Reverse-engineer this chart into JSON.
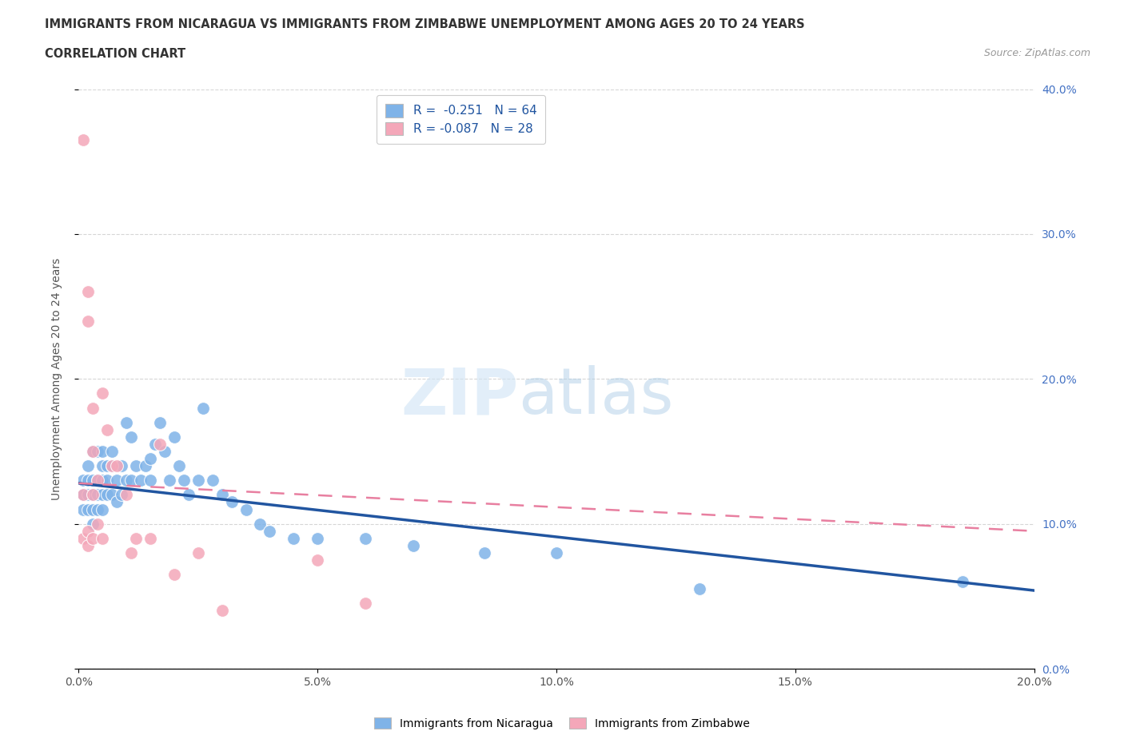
{
  "title_line1": "IMMIGRANTS FROM NICARAGUA VS IMMIGRANTS FROM ZIMBABWE UNEMPLOYMENT AMONG AGES 20 TO 24 YEARS",
  "title_line2": "CORRELATION CHART",
  "source_text": "Source: ZipAtlas.com",
  "ylabel": "Unemployment Among Ages 20 to 24 years",
  "nicaragua_color": "#7fb3e8",
  "zimbabwe_color": "#f4a7b9",
  "nicaragua_line_color": "#2155a0",
  "zimbabwe_line_color": "#e87fa0",
  "xlim": [
    0.0,
    0.2
  ],
  "ylim": [
    0.0,
    0.4
  ],
  "xticks": [
    0.0,
    0.05,
    0.1,
    0.15,
    0.2
  ],
  "yticks": [
    0.0,
    0.1,
    0.2,
    0.3,
    0.4
  ],
  "nicaragua_scatter_x": [
    0.001,
    0.001,
    0.001,
    0.002,
    0.002,
    0.002,
    0.002,
    0.003,
    0.003,
    0.003,
    0.003,
    0.003,
    0.004,
    0.004,
    0.004,
    0.004,
    0.005,
    0.005,
    0.005,
    0.005,
    0.005,
    0.006,
    0.006,
    0.006,
    0.007,
    0.007,
    0.007,
    0.008,
    0.008,
    0.009,
    0.009,
    0.01,
    0.01,
    0.011,
    0.011,
    0.012,
    0.013,
    0.014,
    0.015,
    0.015,
    0.016,
    0.017,
    0.018,
    0.019,
    0.02,
    0.021,
    0.022,
    0.023,
    0.025,
    0.026,
    0.028,
    0.03,
    0.032,
    0.035,
    0.038,
    0.04,
    0.045,
    0.05,
    0.06,
    0.07,
    0.085,
    0.1,
    0.13,
    0.185
  ],
  "nicaragua_scatter_y": [
    0.13,
    0.12,
    0.11,
    0.14,
    0.13,
    0.12,
    0.11,
    0.15,
    0.13,
    0.12,
    0.11,
    0.1,
    0.15,
    0.13,
    0.12,
    0.11,
    0.15,
    0.14,
    0.13,
    0.12,
    0.11,
    0.14,
    0.13,
    0.12,
    0.15,
    0.14,
    0.12,
    0.13,
    0.115,
    0.14,
    0.12,
    0.17,
    0.13,
    0.16,
    0.13,
    0.14,
    0.13,
    0.14,
    0.145,
    0.13,
    0.155,
    0.17,
    0.15,
    0.13,
    0.16,
    0.14,
    0.13,
    0.12,
    0.13,
    0.18,
    0.13,
    0.12,
    0.115,
    0.11,
    0.1,
    0.095,
    0.09,
    0.09,
    0.09,
    0.085,
    0.08,
    0.08,
    0.055,
    0.06
  ],
  "zimbabwe_scatter_x": [
    0.001,
    0.001,
    0.001,
    0.002,
    0.002,
    0.002,
    0.002,
    0.003,
    0.003,
    0.003,
    0.003,
    0.004,
    0.004,
    0.005,
    0.005,
    0.006,
    0.007,
    0.008,
    0.01,
    0.011,
    0.012,
    0.015,
    0.017,
    0.02,
    0.025,
    0.03,
    0.05,
    0.06
  ],
  "zimbabwe_scatter_y": [
    0.365,
    0.12,
    0.09,
    0.26,
    0.24,
    0.095,
    0.085,
    0.18,
    0.15,
    0.12,
    0.09,
    0.13,
    0.1,
    0.19,
    0.09,
    0.165,
    0.14,
    0.14,
    0.12,
    0.08,
    0.09,
    0.09,
    0.155,
    0.065,
    0.08,
    0.04,
    0.075,
    0.045
  ],
  "nicaragua_line_x0": 0.0,
  "nicaragua_line_y0": 0.128,
  "nicaragua_line_x1": 0.2,
  "nicaragua_line_y1": 0.054,
  "zimbabwe_line_x0": 0.0,
  "zimbabwe_line_y0": 0.128,
  "zimbabwe_line_x1": 0.2,
  "zimbabwe_line_y1": 0.095
}
